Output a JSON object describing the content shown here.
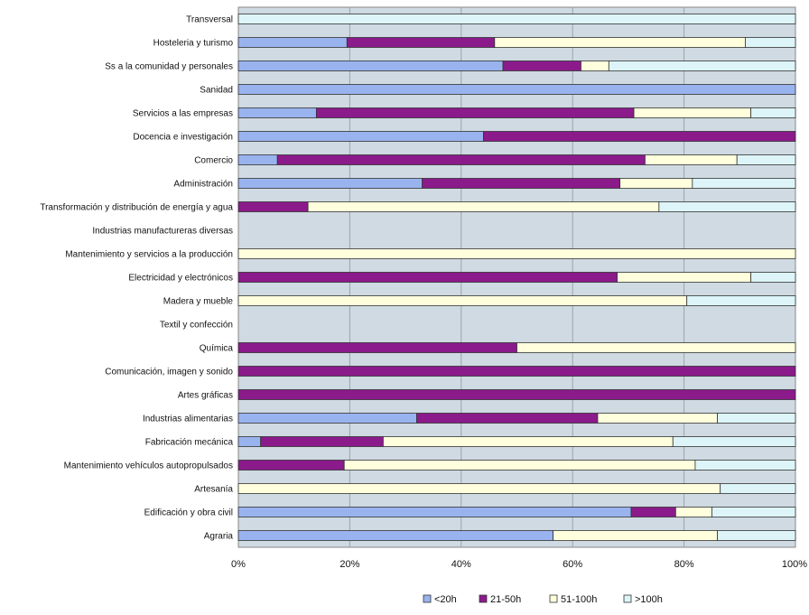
{
  "chart_data": {
    "type": "bar",
    "orientation": "horizontal",
    "stacked": "percent",
    "categories": [
      "Transversal",
      "Hosteleria y turismo",
      "Ss a la comunidad y personales",
      "Sanidad",
      "Servicios a las empresas",
      "Docencia e investigación",
      "Comercio",
      "Administración",
      "Transformación y distribución de energía y agua",
      "Industrias manufactureras diversas",
      "Mantenimiento y servicios a la producción",
      "Electricidad y electrónicos",
      "Madera y mueble",
      "Textil y confección",
      "Química",
      "Comunicación, imagen y sonido",
      "Artes gráficas",
      "Industrias alimentarias",
      "Fabricación mecánica",
      "Mantenimiento vehículos autopropulsados",
      "Artesanía",
      "Edificación y obra civil",
      "Agraria"
    ],
    "series": [
      {
        "name": "<20h",
        "color": "#99b3ee",
        "values": [
          0,
          19.5,
          47.5,
          100,
          14,
          44,
          7,
          33,
          0,
          0,
          0,
          0,
          0,
          0,
          0,
          0,
          0,
          32,
          4,
          0,
          0,
          70.5,
          56.5
        ]
      },
      {
        "name": "21-50h",
        "color": "#8b1a8b",
        "values": [
          0,
          26.5,
          14,
          0,
          57,
          56,
          66,
          35.5,
          12.5,
          0,
          0,
          68,
          0,
          0,
          50,
          100,
          100,
          32.5,
          22,
          19,
          0,
          8,
          0
        ]
      },
      {
        "name": "51-100h",
        "color": "#ffffdd",
        "values": [
          0,
          45,
          5,
          0,
          21,
          0,
          16.5,
          13,
          63,
          0,
          100,
          24,
          80.5,
          0,
          50,
          0,
          0,
          21.5,
          52,
          63,
          86.5,
          6.5,
          29.5
        ]
      },
      {
        "name": ">100h",
        "color": "#ddf5f8",
        "values": [
          100,
          9,
          33.5,
          0,
          8,
          0,
          10.5,
          18.5,
          24.5,
          0,
          0,
          8,
          19.5,
          0,
          0,
          0,
          0,
          14,
          22,
          18,
          13.5,
          15,
          14
        ]
      }
    ],
    "x_ticks": [
      "0%",
      "20%",
      "40%",
      "60%",
      "80%",
      "100%"
    ],
    "xlim": [
      0,
      100
    ],
    "grid": "vertical",
    "legend_position": "bottom",
    "plot_background": "#cfdae2",
    "title": "",
    "xlabel": "",
    "ylabel": ""
  }
}
